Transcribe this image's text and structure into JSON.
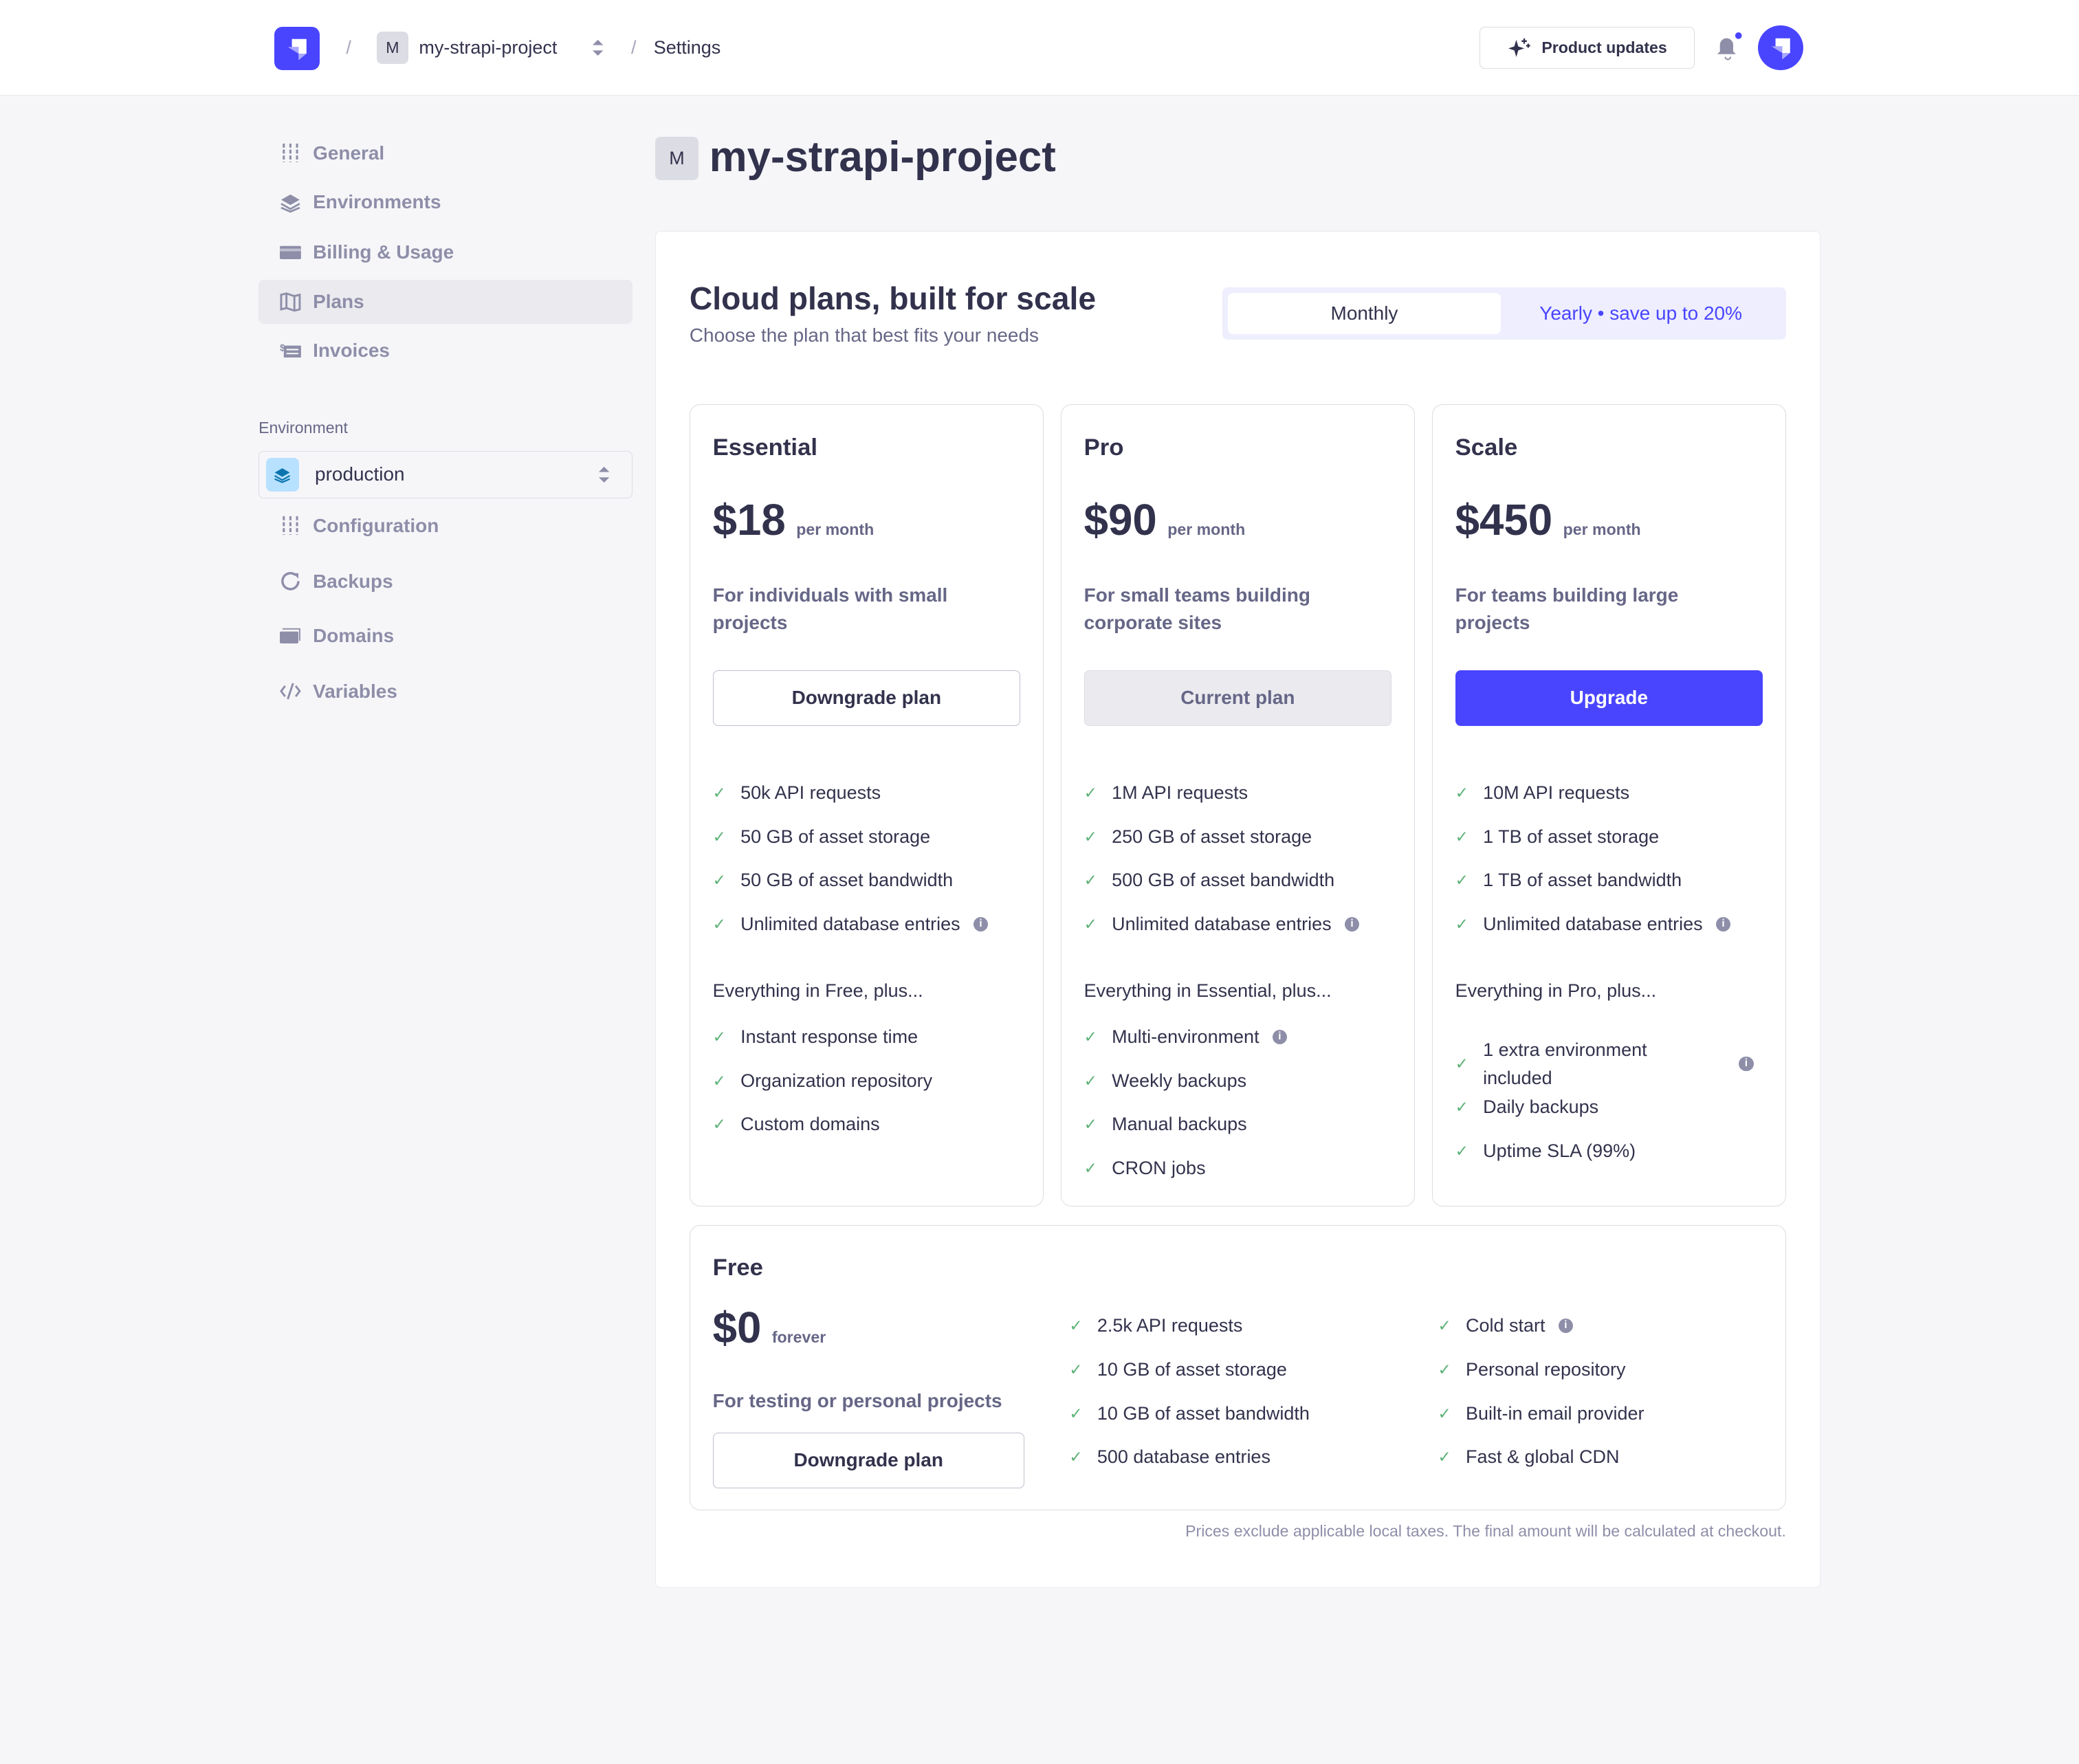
{
  "header": {
    "project_initial": "M",
    "project_name": "my-strapi-project",
    "current_page": "Settings",
    "product_updates": "Product updates",
    "separator": "/"
  },
  "sidebar": {
    "items": [
      {
        "label": "General",
        "icon": "sliders-icon"
      },
      {
        "label": "Environments",
        "icon": "layers-icon"
      },
      {
        "label": "Billing & Usage",
        "icon": "credit-card-icon"
      },
      {
        "label": "Plans",
        "icon": "map-icon",
        "active": true
      },
      {
        "label": "Invoices",
        "icon": "invoice-icon"
      }
    ],
    "environment_label": "Environment",
    "environment_value": "production",
    "env_items": [
      {
        "label": "Configuration",
        "icon": "sliders-icon"
      },
      {
        "label": "Backups",
        "icon": "refresh-icon"
      },
      {
        "label": "Domains",
        "icon": "domains-icon"
      },
      {
        "label": "Variables",
        "icon": "code-icon"
      }
    ]
  },
  "main": {
    "project_initial": "M",
    "title": "my-strapi-project",
    "heading": "Cloud plans, built for scale",
    "subheading": "Choose the plan that best fits your needs",
    "toggle": {
      "monthly": "Monthly",
      "yearly": "Yearly • save up to 20%",
      "selected": "Monthly"
    },
    "plans": [
      {
        "name": "Essential",
        "price": "$18",
        "period": "per month",
        "desc": "For individuals with small projects",
        "button": "Downgrade plan",
        "features": [
          {
            "t": "50k API requests"
          },
          {
            "t": "50 GB of asset storage"
          },
          {
            "t": "50 GB of asset bandwidth"
          },
          {
            "t": "Unlimited database entries",
            "info": true
          }
        ],
        "plus": "Everything in Free, plus...",
        "extras": [
          {
            "t": "Instant response time"
          },
          {
            "t": "Organization repository"
          },
          {
            "t": "Custom domains"
          }
        ]
      },
      {
        "name": "Pro",
        "price": "$90",
        "period": "per month",
        "desc": "For small teams building corporate sites",
        "button": "Current plan",
        "features": [
          {
            "t": "1M API requests"
          },
          {
            "t": "250 GB of asset storage"
          },
          {
            "t": "500 GB of asset bandwidth"
          },
          {
            "t": "Unlimited database entries",
            "info": true
          }
        ],
        "plus": "Everything in Essential, plus...",
        "extras": [
          {
            "t": "Multi-environment",
            "info": true
          },
          {
            "t": "Weekly backups"
          },
          {
            "t": "Manual backups"
          },
          {
            "t": "CRON jobs"
          }
        ]
      },
      {
        "name": "Scale",
        "price": "$450",
        "period": "per month",
        "desc": "For teams building large projects",
        "button": "Upgrade",
        "features": [
          {
            "t": "10M API requests"
          },
          {
            "t": "1 TB of asset storage"
          },
          {
            "t": "1 TB of asset bandwidth"
          },
          {
            "t": "Unlimited database entries",
            "info": true
          }
        ],
        "plus": "Everything in Pro, plus...",
        "extras": [
          {
            "t": "1 extra environment included",
            "info": true,
            "two": true
          },
          {
            "t": "Daily backups"
          },
          {
            "t": "Uptime SLA (99%)"
          }
        ]
      }
    ],
    "free": {
      "name": "Free",
      "price": "$0",
      "period": "forever",
      "desc": "For testing or personal projects",
      "button": "Downgrade plan",
      "col1": [
        {
          "t": "2.5k API requests"
        },
        {
          "t": "10 GB of asset storage"
        },
        {
          "t": "10 GB of asset bandwidth"
        },
        {
          "t": "500 database entries"
        }
      ],
      "col2": [
        {
          "t": "Cold start",
          "info": true
        },
        {
          "t": "Personal repository"
        },
        {
          "t": "Built-in email provider"
        },
        {
          "t": "Fast & global CDN"
        }
      ]
    },
    "footnote": "Prices exclude applicable local taxes. The final amount will be calculated at checkout.",
    "accent": "#4945ff",
    "check_color": "#5cb176"
  }
}
